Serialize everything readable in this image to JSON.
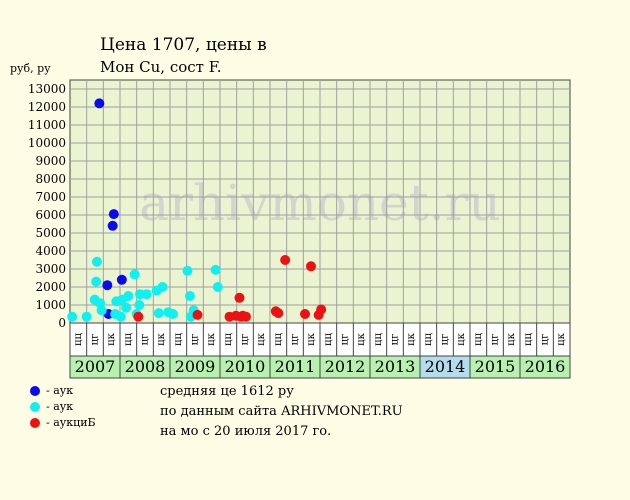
{
  "title_line1": "Цена 1707, цены в",
  "title_line2": "Мон Cu, сост F.",
  "y_unit": "руб, ру",
  "watermark": "arhivmonet.ru",
  "colors": {
    "blue": "#0a0aee",
    "cyan": "#10f0f0",
    "red": "#ee1111",
    "grid": "#a0a0a0",
    "plot_bg": "#eaf4d0",
    "year_green": "#b8f0b0",
    "year_blue": "#b4dcec"
  },
  "legend": [
    {
      "color": "#0a0aee",
      "label": "- аук"
    },
    {
      "color": "#10f0f0",
      "label": "- аук"
    },
    {
      "color": "#ee1111",
      "label": "- аукциБ"
    }
  ],
  "info": [
    "средняя це 1612 ру",
    "по данным сайта ARHIVMONET.RU",
    "на мо с 20 июля 2017 го."
  ],
  "chart_data": {
    "type": "scatter",
    "ylim": [
      0,
      13500
    ],
    "y_ticks": [
      0,
      1000,
      2000,
      3000,
      4000,
      5000,
      6000,
      7000,
      8000,
      9000,
      10000,
      11000,
      12000,
      13000
    ],
    "years": [
      {
        "label": "2007",
        "highlight": "green"
      },
      {
        "label": "2008",
        "highlight": "green"
      },
      {
        "label": "2009",
        "highlight": "green"
      },
      {
        "label": "2010",
        "highlight": "green"
      },
      {
        "label": "2011",
        "highlight": "green"
      },
      {
        "label": "2012",
        "highlight": "green"
      },
      {
        "label": "2013",
        "highlight": "green"
      },
      {
        "label": "2014",
        "highlight": "blue"
      },
      {
        "label": "2015",
        "highlight": "green"
      },
      {
        "label": "2016",
        "highlight": "green"
      }
    ],
    "period_labels": [
      "цц",
      "цг",
      "цк"
    ],
    "series": [
      {
        "color": "#0a0aee",
        "points": [
          [
            1.76,
            12200
          ],
          [
            2.24,
            2100
          ],
          [
            2.31,
            500
          ],
          [
            2.56,
            5400
          ],
          [
            2.63,
            6050
          ],
          [
            3.11,
            2400
          ]
        ]
      },
      {
        "color": "#10f0f0",
        "points": [
          [
            0.13,
            350
          ],
          [
            1.0,
            350
          ],
          [
            1.48,
            1300
          ],
          [
            1.57,
            2300
          ],
          [
            1.62,
            3400
          ],
          [
            1.81,
            1100
          ],
          [
            1.9,
            700
          ],
          [
            2.71,
            500
          ],
          [
            2.78,
            1200
          ],
          [
            3.05,
            350
          ],
          [
            3.13,
            1300
          ],
          [
            3.37,
            850
          ],
          [
            3.5,
            1500
          ],
          [
            3.88,
            2700
          ],
          [
            4.0,
            500
          ],
          [
            4.16,
            1000
          ],
          [
            4.2,
            1600
          ],
          [
            4.6,
            1600
          ],
          [
            5.2,
            1800
          ],
          [
            5.33,
            550
          ],
          [
            5.55,
            2000
          ],
          [
            5.9,
            600
          ],
          [
            6.18,
            500
          ],
          [
            7.05,
            2900
          ],
          [
            7.2,
            1500
          ],
          [
            7.25,
            350
          ],
          [
            7.42,
            700
          ],
          [
            8.74,
            2950
          ],
          [
            8.87,
            2000
          ]
        ]
      },
      {
        "color": "#ee1111",
        "points": [
          [
            4.1,
            350
          ],
          [
            7.65,
            450
          ],
          [
            9.57,
            350
          ],
          [
            9.96,
            400
          ],
          [
            10.17,
            1400
          ],
          [
            10.26,
            350
          ],
          [
            10.37,
            400
          ],
          [
            10.56,
            350
          ],
          [
            12.35,
            650
          ],
          [
            12.5,
            550
          ],
          [
            12.91,
            3500
          ],
          [
            14.1,
            500
          ],
          [
            14.46,
            3150
          ],
          [
            14.92,
            450
          ],
          [
            15.07,
            750
          ]
        ]
      }
    ]
  }
}
